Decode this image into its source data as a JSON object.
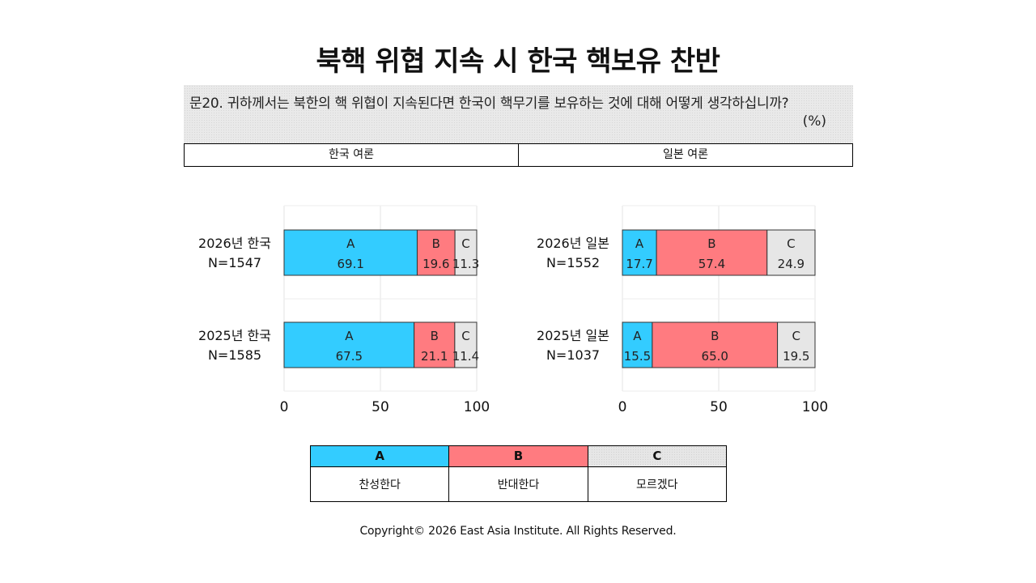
{
  "title": "북핵 위협 지속 시 한국 핵보유 찬반",
  "question": "문20. 귀하께서는 북한의 핵 위협이 지속된다면 한국이 핵무기를 보유하는 것에 대해 어떻게 생각하십니까?",
  "unit": "(%)",
  "panel_headers": [
    "한국 여론",
    "일본 여론"
  ],
  "colors": {
    "A": "#33ccff",
    "B": "#ff7b80",
    "C": "#e6e6e6"
  },
  "legend": [
    {
      "key": "A",
      "label": "찬성한다"
    },
    {
      "key": "B",
      "label": "반대한다"
    },
    {
      "key": "C",
      "label": "모르겠다"
    }
  ],
  "chart_data": [
    {
      "type": "bar",
      "stacked": true,
      "orientation": "horizontal",
      "categories": [
        [
          "2026년 한국",
          "N=1547"
        ],
        [
          "2025년 한국",
          "N=1585"
        ]
      ],
      "series": [
        {
          "name": "A",
          "values": [
            69.1,
            67.5
          ]
        },
        {
          "name": "B",
          "values": [
            19.6,
            21.1
          ]
        },
        {
          "name": "C",
          "values": [
            11.3,
            11.4
          ]
        }
      ],
      "xlim": [
        0,
        100
      ],
      "xticks": [
        0,
        50,
        100
      ],
      "grid": true
    },
    {
      "type": "bar",
      "stacked": true,
      "orientation": "horizontal",
      "categories": [
        [
          "2026년 일본",
          "N=1552"
        ],
        [
          "2025년 일본",
          "N=1037"
        ]
      ],
      "series": [
        {
          "name": "A",
          "values": [
            17.7,
            15.5
          ]
        },
        {
          "name": "B",
          "values": [
            57.4,
            65.0
          ]
        },
        {
          "name": "C",
          "values": [
            24.9,
            19.5
          ]
        }
      ],
      "xlim": [
        0,
        100
      ],
      "xticks": [
        0,
        50,
        100
      ],
      "grid": true
    }
  ],
  "copyright": "Copyright© 2026 East Asia Institute. All Rights Reserved."
}
